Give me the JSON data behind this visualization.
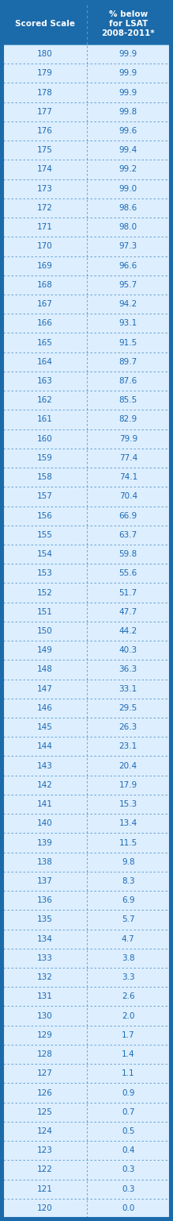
{
  "title_col1": "Scored Scale",
  "title_col2": "% below\nfor LSAT\n2008-2011*",
  "header_bg": "#1b6aaa",
  "header_fg": "#ffffff",
  "row_bg": "#ddeeff",
  "row_fg": "#1a6ab5",
  "border_color": "#1b6aaa",
  "divider_color": "#5599cc",
  "col_split": 0.5,
  "rows": [
    [
      180,
      "99.9"
    ],
    [
      179,
      "99.9"
    ],
    [
      178,
      "99.9"
    ],
    [
      177,
      "99.8"
    ],
    [
      176,
      "99.6"
    ],
    [
      175,
      "99.4"
    ],
    [
      174,
      "99.2"
    ],
    [
      173,
      "99.0"
    ],
    [
      172,
      "98.6"
    ],
    [
      171,
      "98.0"
    ],
    [
      170,
      "97.3"
    ],
    [
      169,
      "96.6"
    ],
    [
      168,
      "95.7"
    ],
    [
      167,
      "94.2"
    ],
    [
      166,
      "93.1"
    ],
    [
      165,
      "91.5"
    ],
    [
      164,
      "89.7"
    ],
    [
      163,
      "87.6"
    ],
    [
      162,
      "85.5"
    ],
    [
      161,
      "82.9"
    ],
    [
      160,
      "79.9"
    ],
    [
      159,
      "77.4"
    ],
    [
      158,
      "74.1"
    ],
    [
      157,
      "70.4"
    ],
    [
      156,
      "66.9"
    ],
    [
      155,
      "63.7"
    ],
    [
      154,
      "59.8"
    ],
    [
      153,
      "55.6"
    ],
    [
      152,
      "51.7"
    ],
    [
      151,
      "47.7"
    ],
    [
      150,
      "44.2"
    ],
    [
      149,
      "40.3"
    ],
    [
      148,
      "36.3"
    ],
    [
      147,
      "33.1"
    ],
    [
      146,
      "29.5"
    ],
    [
      145,
      "26.3"
    ],
    [
      144,
      "23.1"
    ],
    [
      143,
      "20.4"
    ],
    [
      142,
      "17.9"
    ],
    [
      141,
      "15.3"
    ],
    [
      140,
      "13.4"
    ],
    [
      139,
      "11.5"
    ],
    [
      138,
      "9.8"
    ],
    [
      137,
      "8.3"
    ],
    [
      136,
      "6.9"
    ],
    [
      135,
      "5.7"
    ],
    [
      134,
      "4.7"
    ],
    [
      133,
      "3.8"
    ],
    [
      132,
      "3.3"
    ],
    [
      131,
      "2.6"
    ],
    [
      130,
      "2.0"
    ],
    [
      129,
      "1.7"
    ],
    [
      128,
      "1.4"
    ],
    [
      127,
      "1.1"
    ],
    [
      126,
      "0.9"
    ],
    [
      125,
      "0.7"
    ],
    [
      124,
      "0.5"
    ],
    [
      123,
      "0.4"
    ],
    [
      122,
      "0.3"
    ],
    [
      121,
      "0.3"
    ],
    [
      120,
      "0.0"
    ]
  ]
}
